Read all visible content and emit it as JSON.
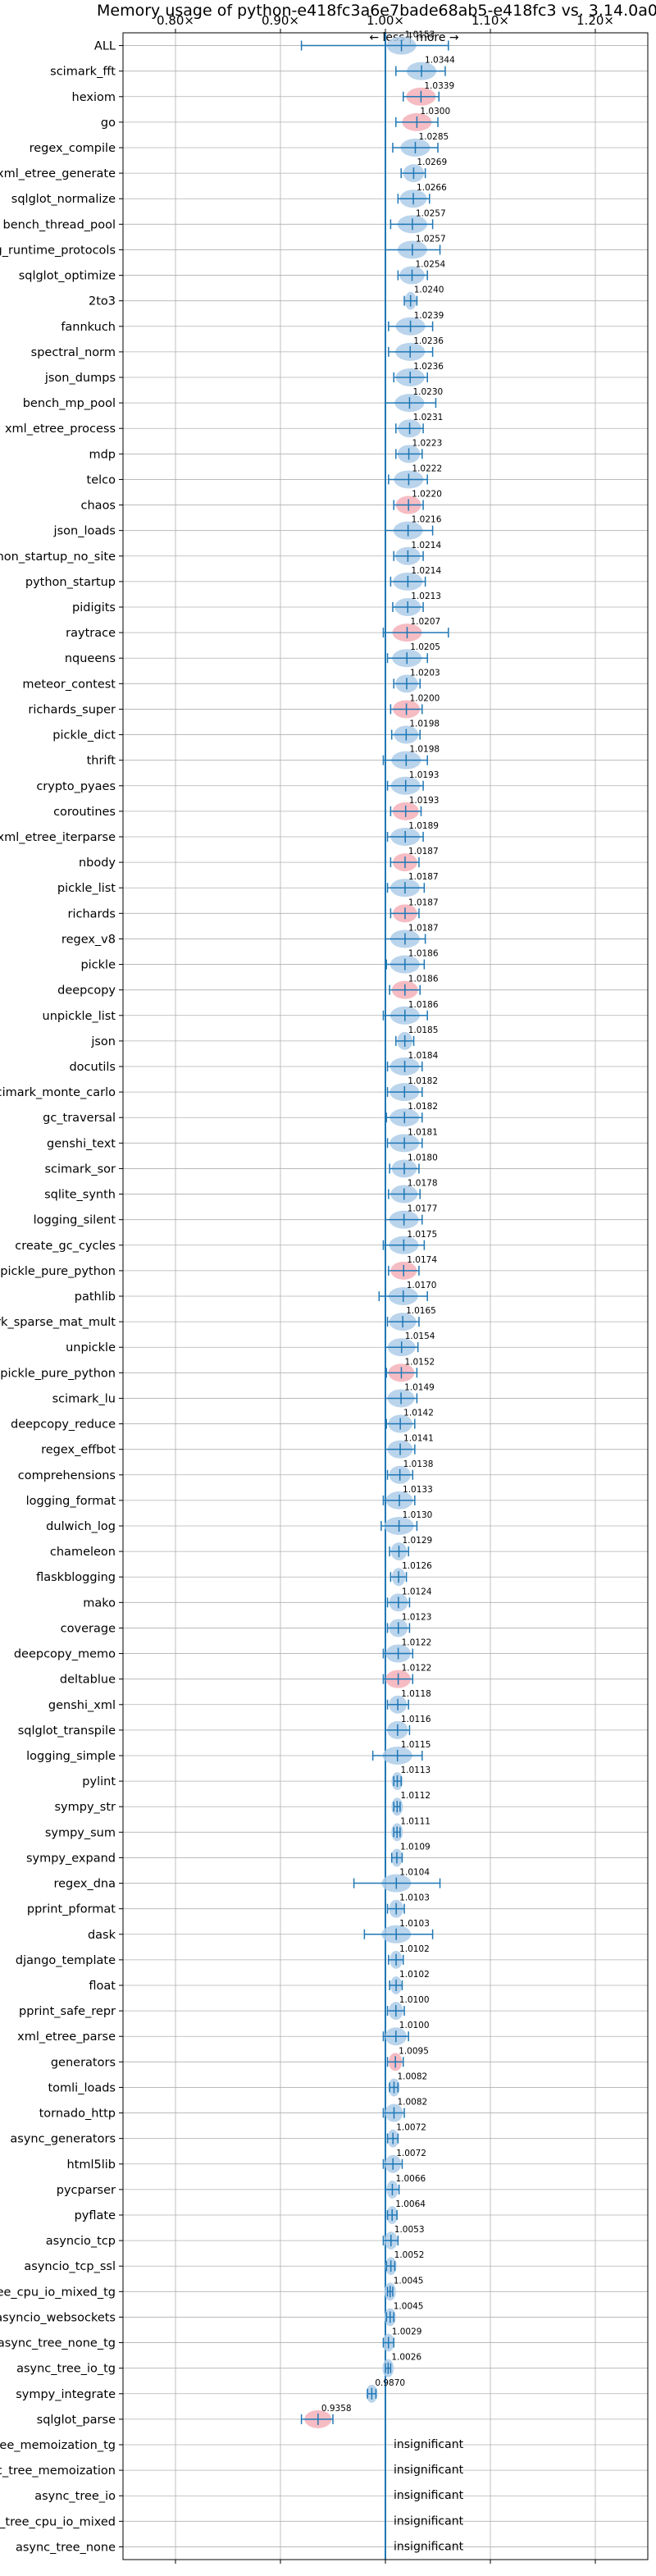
{
  "chart_data": {
    "type": "scatter",
    "title": "Memory usage of python-e418fc3a6e7bade68ab5-e418fc3 vs. 3.14.0a0",
    "x_ticks": [
      "0.80×",
      "0.90×",
      "1.00×",
      "1.10×",
      "1.20×"
    ],
    "x_tick_values": [
      0.8,
      0.9,
      1.0,
      1.1,
      1.2
    ],
    "xlim": [
      0.75,
      1.25
    ],
    "direction_label": "← less | more →",
    "grid": true,
    "insignificant_label": "insignificant",
    "series": [
      {
        "name": "ALL",
        "value": 1.0153,
        "low": 0.92,
        "high": 1.06,
        "label": "1.0153",
        "color": "#aecde9"
      },
      {
        "name": "scimark_fft",
        "value": 1.0344,
        "low": 1.01,
        "high": 1.057,
        "label": "1.0344",
        "color": "#aecde9"
      },
      {
        "name": "hexiom",
        "value": 1.0339,
        "low": 1.017,
        "high": 1.051,
        "label": "1.0339",
        "color": "#f4b0b8"
      },
      {
        "name": "go",
        "value": 1.03,
        "low": 1.01,
        "high": 1.05,
        "label": "1.0300",
        "color": "#f4b0b8"
      },
      {
        "name": "regex_compile",
        "value": 1.0285,
        "low": 1.007,
        "high": 1.05,
        "label": "1.0285",
        "color": "#aecde9"
      },
      {
        "name": "xml_etree_generate",
        "value": 1.0269,
        "low": 1.015,
        "high": 1.038,
        "label": "1.0269",
        "color": "#aecde9"
      },
      {
        "name": "sqlglot_normalize",
        "value": 1.0266,
        "low": 1.012,
        "high": 1.042,
        "label": "1.0266",
        "color": "#aecde9"
      },
      {
        "name": "bench_thread_pool",
        "value": 1.0257,
        "low": 1.005,
        "high": 1.045,
        "label": "1.0257",
        "color": "#aecde9"
      },
      {
        "name": "typing_runtime_protocols",
        "value": 1.0257,
        "low": 1.0,
        "high": 1.052,
        "label": "1.0257",
        "color": "#aecde9"
      },
      {
        "name": "sqlglot_optimize",
        "value": 1.0254,
        "low": 1.012,
        "high": 1.04,
        "label": "1.0254",
        "color": "#aecde9"
      },
      {
        "name": "2to3",
        "value": 1.024,
        "low": 1.018,
        "high": 1.03,
        "label": "1.0240",
        "color": "#aecde9"
      },
      {
        "name": "fannkuch",
        "value": 1.0239,
        "low": 1.003,
        "high": 1.045,
        "label": "1.0239",
        "color": "#aecde9"
      },
      {
        "name": "spectral_norm",
        "value": 1.0236,
        "low": 1.003,
        "high": 1.045,
        "label": "1.0236",
        "color": "#aecde9"
      },
      {
        "name": "json_dumps",
        "value": 1.0236,
        "low": 1.008,
        "high": 1.04,
        "label": "1.0236",
        "color": "#aecde9"
      },
      {
        "name": "bench_mp_pool",
        "value": 1.023,
        "low": 1.0,
        "high": 1.048,
        "label": "1.0230",
        "color": "#aecde9"
      },
      {
        "name": "xml_etree_process",
        "value": 1.0231,
        "low": 1.01,
        "high": 1.036,
        "label": "1.0231",
        "color": "#aecde9"
      },
      {
        "name": "mdp",
        "value": 1.0223,
        "low": 1.01,
        "high": 1.035,
        "label": "1.0223",
        "color": "#aecde9"
      },
      {
        "name": "telco",
        "value": 1.0222,
        "low": 1.003,
        "high": 1.04,
        "label": "1.0222",
        "color": "#aecde9"
      },
      {
        "name": "chaos",
        "value": 1.022,
        "low": 1.008,
        "high": 1.036,
        "label": "1.0220",
        "color": "#f4b0b8"
      },
      {
        "name": "json_loads",
        "value": 1.0216,
        "low": 1.0,
        "high": 1.045,
        "label": "1.0216",
        "color": "#aecde9"
      },
      {
        "name": "python_startup_no_site",
        "value": 1.0214,
        "low": 1.008,
        "high": 1.036,
        "label": "1.0214",
        "color": "#aecde9"
      },
      {
        "name": "python_startup",
        "value": 1.0214,
        "low": 1.005,
        "high": 1.038,
        "label": "1.0214",
        "color": "#aecde9"
      },
      {
        "name": "pidigits",
        "value": 1.0213,
        "low": 1.007,
        "high": 1.036,
        "label": "1.0213",
        "color": "#aecde9"
      },
      {
        "name": "raytrace",
        "value": 1.0207,
        "low": 0.998,
        "high": 1.06,
        "label": "1.0207",
        "color": "#f4b0b8"
      },
      {
        "name": "nqueens",
        "value": 1.0205,
        "low": 1.002,
        "high": 1.04,
        "label": "1.0205",
        "color": "#aecde9"
      },
      {
        "name": "meteor_contest",
        "value": 1.0203,
        "low": 1.008,
        "high": 1.033,
        "label": "1.0203",
        "color": "#aecde9"
      },
      {
        "name": "richards_super",
        "value": 1.02,
        "low": 1.005,
        "high": 1.035,
        "label": "1.0200",
        "color": "#f4b0b8"
      },
      {
        "name": "pickle_dict",
        "value": 1.0198,
        "low": 1.006,
        "high": 1.033,
        "label": "1.0198",
        "color": "#aecde9"
      },
      {
        "name": "thrift",
        "value": 1.0198,
        "low": 0.998,
        "high": 1.04,
        "label": "1.0198",
        "color": "#aecde9"
      },
      {
        "name": "crypto_pyaes",
        "value": 1.0193,
        "low": 1.002,
        "high": 1.036,
        "label": "1.0193",
        "color": "#aecde9"
      },
      {
        "name": "coroutines",
        "value": 1.0193,
        "low": 1.005,
        "high": 1.034,
        "label": "1.0193",
        "color": "#f4b0b8"
      },
      {
        "name": "xml_etree_iterparse",
        "value": 1.0189,
        "low": 1.002,
        "high": 1.036,
        "label": "1.0189",
        "color": "#aecde9"
      },
      {
        "name": "nbody",
        "value": 1.0187,
        "low": 1.005,
        "high": 1.032,
        "label": "1.0187",
        "color": "#f4b0b8"
      },
      {
        "name": "pickle_list",
        "value": 1.0187,
        "low": 1.002,
        "high": 1.037,
        "label": "1.0187",
        "color": "#aecde9"
      },
      {
        "name": "richards",
        "value": 1.0187,
        "low": 1.005,
        "high": 1.032,
        "label": "1.0187",
        "color": "#f4b0b8"
      },
      {
        "name": "regex_v8",
        "value": 1.0187,
        "low": 1.0,
        "high": 1.038,
        "label": "1.0187",
        "color": "#aecde9"
      },
      {
        "name": "pickle",
        "value": 1.0186,
        "low": 1.001,
        "high": 1.037,
        "label": "1.0186",
        "color": "#aecde9"
      },
      {
        "name": "deepcopy",
        "value": 1.0186,
        "low": 1.004,
        "high": 1.033,
        "label": "1.0186",
        "color": "#f4b0b8"
      },
      {
        "name": "unpickle_list",
        "value": 1.0186,
        "low": 0.998,
        "high": 1.04,
        "label": "1.0186",
        "color": "#aecde9"
      },
      {
        "name": "json",
        "value": 1.0185,
        "low": 1.01,
        "high": 1.027,
        "label": "1.0185",
        "color": "#aecde9"
      },
      {
        "name": "docutils",
        "value": 1.0184,
        "low": 1.002,
        "high": 1.035,
        "label": "1.0184",
        "color": "#aecde9"
      },
      {
        "name": "scimark_monte_carlo",
        "value": 1.0182,
        "low": 1.002,
        "high": 1.035,
        "label": "1.0182",
        "color": "#aecde9"
      },
      {
        "name": "gc_traversal",
        "value": 1.0182,
        "low": 1.001,
        "high": 1.035,
        "label": "1.0182",
        "color": "#aecde9"
      },
      {
        "name": "genshi_text",
        "value": 1.0181,
        "low": 1.002,
        "high": 1.035,
        "label": "1.0181",
        "color": "#aecde9"
      },
      {
        "name": "scimark_sor",
        "value": 1.018,
        "low": 1.004,
        "high": 1.032,
        "label": "1.0180",
        "color": "#aecde9"
      },
      {
        "name": "sqlite_synth",
        "value": 1.0178,
        "low": 1.003,
        "high": 1.033,
        "label": "1.0178",
        "color": "#aecde9"
      },
      {
        "name": "logging_silent",
        "value": 1.0177,
        "low": 1.0,
        "high": 1.035,
        "label": "1.0177",
        "color": "#aecde9"
      },
      {
        "name": "create_gc_cycles",
        "value": 1.0175,
        "low": 0.998,
        "high": 1.037,
        "label": "1.0175",
        "color": "#aecde9"
      },
      {
        "name": "pickle_pure_python",
        "value": 1.0174,
        "low": 1.003,
        "high": 1.032,
        "label": "1.0174",
        "color": "#f4b0b8"
      },
      {
        "name": "pathlib",
        "value": 1.017,
        "low": 0.994,
        "high": 1.04,
        "label": "1.0170",
        "color": "#aecde9"
      },
      {
        "name": "scimark_sparse_mat_mult",
        "value": 1.0165,
        "low": 1.002,
        "high": 1.032,
        "label": "1.0165",
        "color": "#aecde9"
      },
      {
        "name": "unpickle",
        "value": 1.0154,
        "low": 1.0,
        "high": 1.031,
        "label": "1.0154",
        "color": "#aecde9"
      },
      {
        "name": "unpickle_pure_python",
        "value": 1.0152,
        "low": 1.001,
        "high": 1.03,
        "label": "1.0152",
        "color": "#f4b0b8"
      },
      {
        "name": "scimark_lu",
        "value": 1.0149,
        "low": 1.0,
        "high": 1.03,
        "label": "1.0149",
        "color": "#aecde9"
      },
      {
        "name": "deepcopy_reduce",
        "value": 1.0142,
        "low": 1.001,
        "high": 1.028,
        "label": "1.0142",
        "color": "#aecde9"
      },
      {
        "name": "regex_effbot",
        "value": 1.0141,
        "low": 1.0,
        "high": 1.028,
        "label": "1.0141",
        "color": "#aecde9"
      },
      {
        "name": "comprehensions",
        "value": 1.0138,
        "low": 1.002,
        "high": 1.026,
        "label": "1.0138",
        "color": "#aecde9"
      },
      {
        "name": "logging_format",
        "value": 1.0133,
        "low": 0.998,
        "high": 1.028,
        "label": "1.0133",
        "color": "#aecde9"
      },
      {
        "name": "dulwich_log",
        "value": 1.013,
        "low": 0.996,
        "high": 1.03,
        "label": "1.0130",
        "color": "#aecde9"
      },
      {
        "name": "chameleon",
        "value": 1.0129,
        "low": 1.004,
        "high": 1.022,
        "label": "1.0129",
        "color": "#aecde9"
      },
      {
        "name": "flaskblogging",
        "value": 1.0126,
        "low": 1.005,
        "high": 1.02,
        "label": "1.0126",
        "color": "#aecde9"
      },
      {
        "name": "mako",
        "value": 1.0124,
        "low": 1.002,
        "high": 1.023,
        "label": "1.0124",
        "color": "#aecde9"
      },
      {
        "name": "coverage",
        "value": 1.0123,
        "low": 1.002,
        "high": 1.023,
        "label": "1.0123",
        "color": "#aecde9"
      },
      {
        "name": "deepcopy_memo",
        "value": 1.0122,
        "low": 0.998,
        "high": 1.026,
        "label": "1.0122",
        "color": "#aecde9"
      },
      {
        "name": "deltablue",
        "value": 1.0122,
        "low": 0.998,
        "high": 1.026,
        "label": "1.0122",
        "color": "#f4b0b8"
      },
      {
        "name": "genshi_xml",
        "value": 1.0118,
        "low": 1.002,
        "high": 1.022,
        "label": "1.0118",
        "color": "#aecde9"
      },
      {
        "name": "sqlglot_transpile",
        "value": 1.0116,
        "low": 1.0,
        "high": 1.023,
        "label": "1.0116",
        "color": "#aecde9"
      },
      {
        "name": "logging_simple",
        "value": 1.0115,
        "low": 0.988,
        "high": 1.035,
        "label": "1.0115",
        "color": "#aecde9"
      },
      {
        "name": "pylint",
        "value": 1.0113,
        "low": 1.008,
        "high": 1.015,
        "label": "1.0113",
        "color": "#aecde9"
      },
      {
        "name": "sympy_str",
        "value": 1.0112,
        "low": 1.008,
        "high": 1.014,
        "label": "1.0112",
        "color": "#aecde9"
      },
      {
        "name": "sympy_sum",
        "value": 1.0111,
        "low": 1.008,
        "high": 1.014,
        "label": "1.0111",
        "color": "#aecde9"
      },
      {
        "name": "sympy_expand",
        "value": 1.0109,
        "low": 1.006,
        "high": 1.016,
        "label": "1.0109",
        "color": "#aecde9"
      },
      {
        "name": "regex_dna",
        "value": 1.0104,
        "low": 0.97,
        "high": 1.052,
        "label": "1.0104",
        "color": "#aecde9"
      },
      {
        "name": "pprint_pformat",
        "value": 1.0103,
        "low": 1.002,
        "high": 1.018,
        "label": "1.0103",
        "color": "#aecde9"
      },
      {
        "name": "dask",
        "value": 1.0103,
        "low": 0.98,
        "high": 1.045,
        "label": "1.0103",
        "color": "#aecde9"
      },
      {
        "name": "django_template",
        "value": 1.0102,
        "low": 1.003,
        "high": 1.017,
        "label": "1.0102",
        "color": "#aecde9"
      },
      {
        "name": "float",
        "value": 1.0102,
        "low": 1.004,
        "high": 1.016,
        "label": "1.0102",
        "color": "#aecde9"
      },
      {
        "name": "pprint_safe_repr",
        "value": 1.01,
        "low": 1.002,
        "high": 1.018,
        "label": "1.0100",
        "color": "#aecde9"
      },
      {
        "name": "xml_etree_parse",
        "value": 1.01,
        "low": 0.998,
        "high": 1.022,
        "label": "1.0100",
        "color": "#aecde9"
      },
      {
        "name": "generators",
        "value": 1.0095,
        "low": 1.002,
        "high": 1.017,
        "label": "1.0095",
        "color": "#f4b0b8"
      },
      {
        "name": "tomli_loads",
        "value": 1.0082,
        "low": 1.004,
        "high": 1.012,
        "label": "1.0082",
        "color": "#aecde9"
      },
      {
        "name": "tornado_http",
        "value": 1.0082,
        "low": 0.998,
        "high": 1.018,
        "label": "1.0082",
        "color": "#aecde9"
      },
      {
        "name": "async_generators",
        "value": 1.0072,
        "low": 1.002,
        "high": 1.012,
        "label": "1.0072",
        "color": "#aecde9"
      },
      {
        "name": "html5lib",
        "value": 1.0072,
        "low": 0.998,
        "high": 1.016,
        "label": "1.0072",
        "color": "#aecde9"
      },
      {
        "name": "pycparser",
        "value": 1.0066,
        "low": 1.0,
        "high": 1.013,
        "label": "1.0066",
        "color": "#aecde9"
      },
      {
        "name": "pyflate",
        "value": 1.0064,
        "low": 1.002,
        "high": 1.011,
        "label": "1.0064",
        "color": "#aecde9"
      },
      {
        "name": "asyncio_tcp",
        "value": 1.0053,
        "low": 0.998,
        "high": 1.012,
        "label": "1.0053",
        "color": "#aecde9"
      },
      {
        "name": "asyncio_tcp_ssl",
        "value": 1.0052,
        "low": 1.001,
        "high": 1.009,
        "label": "1.0052",
        "color": "#aecde9"
      },
      {
        "name": "async_tree_cpu_io_mixed_tg",
        "value": 1.0045,
        "low": 1.002,
        "high": 1.007,
        "label": "1.0045",
        "color": "#aecde9"
      },
      {
        "name": "asyncio_websockets",
        "value": 1.0045,
        "low": 1.001,
        "high": 1.008,
        "label": "1.0045",
        "color": "#aecde9"
      },
      {
        "name": "async_tree_none_tg",
        "value": 1.0029,
        "low": 0.998,
        "high": 1.008,
        "label": "1.0029",
        "color": "#aecde9"
      },
      {
        "name": "async_tree_io_tg",
        "value": 1.0026,
        "low": 1.0,
        "high": 1.005,
        "label": "1.0026",
        "color": "#aecde9"
      },
      {
        "name": "sympy_integrate",
        "value": 0.987,
        "low": 0.983,
        "high": 0.991,
        "label": "0.9870",
        "color": "#aecde9"
      },
      {
        "name": "sqlglot_parse",
        "value": 0.9358,
        "low": 0.92,
        "high": 0.95,
        "label": "0.9358",
        "color": "#f4b0b8"
      },
      {
        "name": "async_tree_memoization_tg",
        "value": null,
        "insignificant": true
      },
      {
        "name": "async_tree_memoization",
        "value": null,
        "insignificant": true
      },
      {
        "name": "async_tree_io",
        "value": null,
        "insignificant": true
      },
      {
        "name": "async_tree_cpu_io_mixed",
        "value": null,
        "insignificant": true
      },
      {
        "name": "async_tree_none",
        "value": null,
        "insignificant": true
      }
    ]
  }
}
